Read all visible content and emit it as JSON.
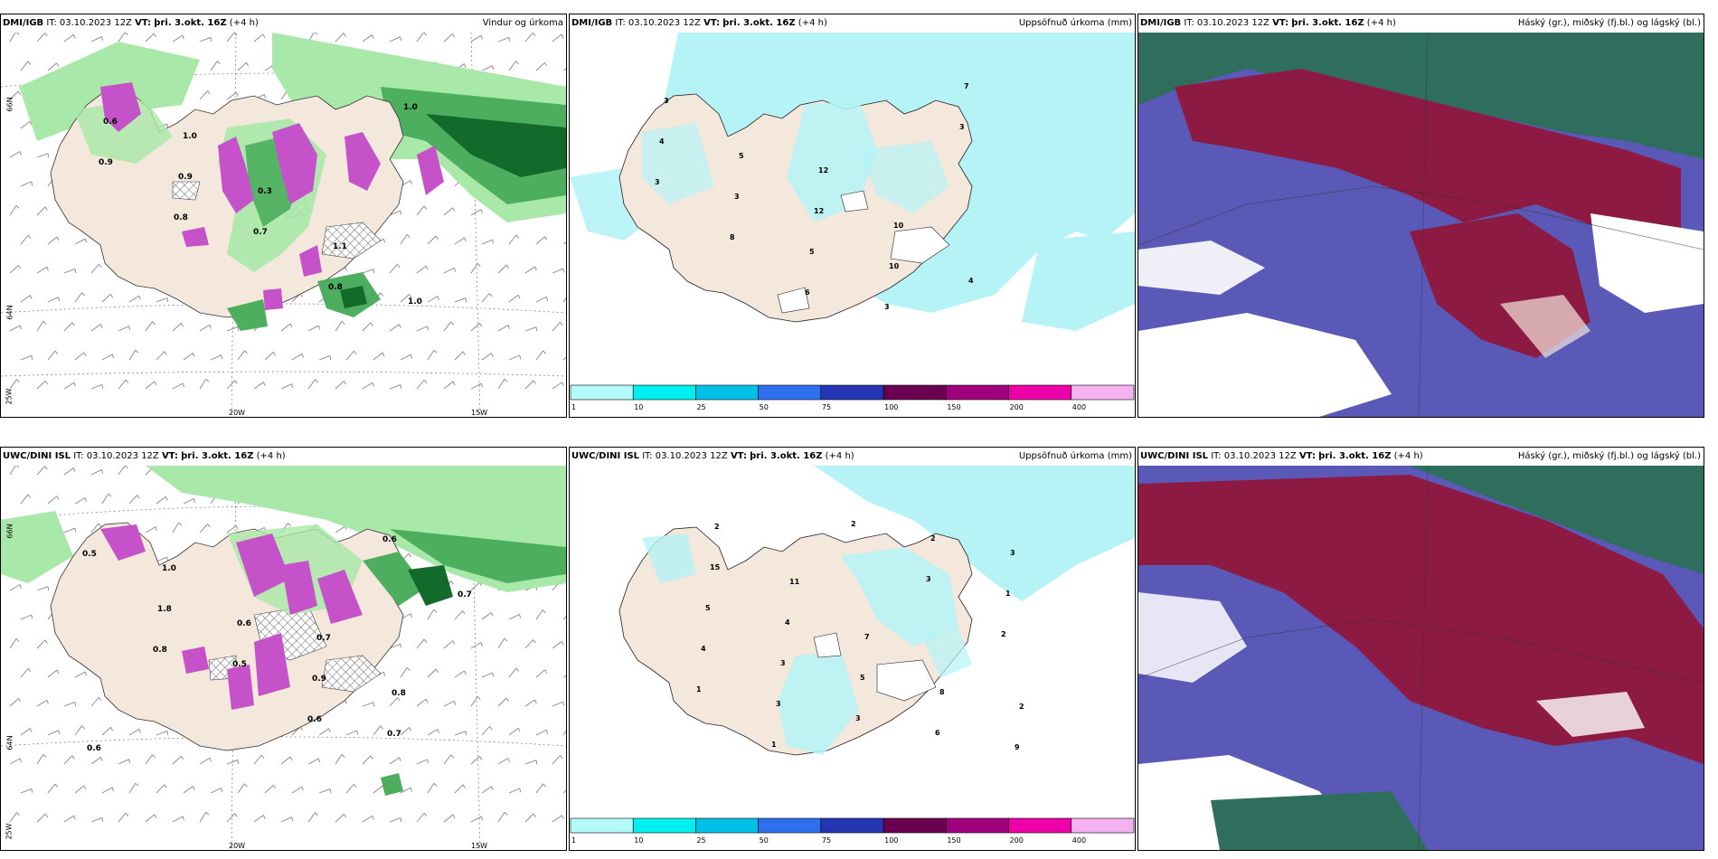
{
  "rows": [
    {
      "model": "DMI/IGB",
      "it_label": "IT:",
      "init": "03.10.2023 12Z",
      "vt_label": "VT:",
      "valid": "þri. 3.okt. 16Z",
      "lead": "(+4 h)"
    },
    {
      "model": "UWC/DINI ISL",
      "it_label": "IT:",
      "init": "03.10.2023 12Z",
      "vt_label": "VT:",
      "valid": "þri. 3.okt. 16Z",
      "lead": "(+4 h)"
    }
  ],
  "panel_titles": {
    "wind_precip": "Vindur og úrkoma",
    "accum_precip": "Uppsöfnuð úrkoma (mm)",
    "clouds": "Háský (gr.), miðský (fj.bl.) og lágský (bl.)"
  },
  "axis_labels": {
    "lat66": "66N",
    "lat64": "64N",
    "lon20": "20W",
    "lon15": "15W",
    "lon25": "25W"
  },
  "colorbar": {
    "ticks": [
      "1",
      "10",
      "25",
      "50",
      "75",
      "100",
      "150",
      "200",
      "400"
    ],
    "colors": [
      "#b3fbfb",
      "#00efef",
      "#00c0e8",
      "#2e6ff0",
      "#2436b4",
      "#6a0050",
      "#a0007e",
      "#ee00a8",
      "#f4b3f0"
    ]
  },
  "colors": {
    "land": "#f4e7dc",
    "precip_light": "#b5f3f6",
    "green_light": "#a8e8a8",
    "green_mid": "#4cae5e",
    "green_dark": "#126b2a",
    "magenta": "#c552c8",
    "cloud_blue": "#5b59b8",
    "cloud_red": "#8c1a43",
    "cloud_teal": "#2f6e5c",
    "cloud_white": "#ffffff"
  },
  "precip_labels_top": [
    "12",
    "10",
    "4",
    "3",
    "5",
    "12",
    "10",
    "7",
    "4",
    "3",
    "5",
    "3",
    "3",
    "3",
    "8",
    "6"
  ],
  "precip_labels_bottom": [
    "2",
    "2",
    "11",
    "7",
    "8",
    "9",
    "15",
    "4",
    "5",
    "6",
    "3",
    "5",
    "3",
    "3",
    "2",
    "1",
    "4",
    "3",
    "2",
    "3",
    "2",
    "1",
    "1"
  ],
  "wind_labels_top": [
    "1.0",
    "0.3",
    "1.1",
    "1.0",
    "0.6",
    "0.9",
    "0.7",
    "0.8",
    "1.0",
    "0.9",
    "0.8"
  ],
  "wind_labels_bottom": [
    "0.7",
    "0.8",
    "0.6",
    "1.0",
    "0.6",
    "0.9",
    "0.7",
    "0.5",
    "1.8",
    "0.5",
    "0.6",
    "0.6",
    "0.7",
    "0.8"
  ]
}
